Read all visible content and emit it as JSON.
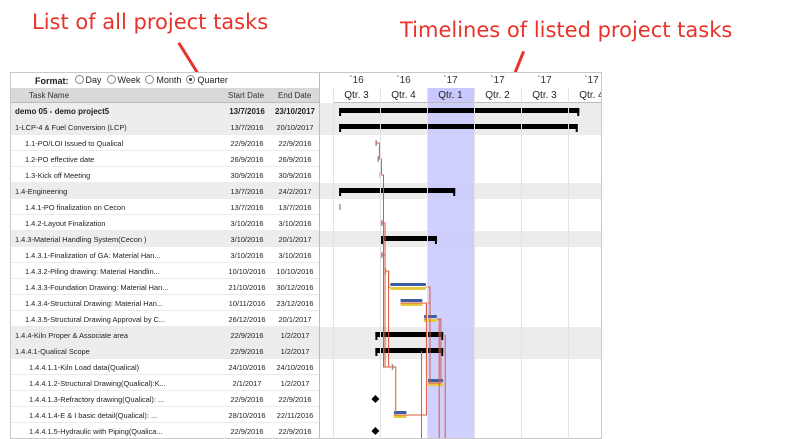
{
  "annotations": {
    "left": "List of all project tasks",
    "right": "Timelines of listed project tasks"
  },
  "format": {
    "label": "Format:",
    "options": [
      "Day",
      "Week",
      "Month",
      "Quarter"
    ],
    "selected": "Quarter"
  },
  "columns": {
    "name": "Task Name",
    "start": "Start Date",
    "end": "End Date"
  },
  "years": [
    "`16",
    "`16",
    "`17",
    "`17",
    "`17",
    "`17"
  ],
  "quarters": [
    "Qtr. 3",
    "Qtr. 4",
    "Qtr. 1",
    "Qtr. 2",
    "Qtr. 3",
    "Qtr. 4"
  ],
  "current_quarter_index": 2,
  "colors": {
    "bar_blue": "#3b5f9e",
    "bar_yellow": "#e7c93b",
    "summary": "#000000",
    "link": "#d85a3f",
    "current": "#c9c9ff",
    "annotation": "#e8332a"
  },
  "tasks": [
    {
      "name": "demo 05 - demo project5",
      "start": "13/7/2016",
      "end": "23/10/2017",
      "level": 0,
      "type": "project"
    },
    {
      "name": "1-LCP-4 & Fuel Conversion (LCP)",
      "start": "13/7/2016",
      "end": "20/10/2017",
      "level": 0,
      "type": "summary"
    },
    {
      "name": "1.1-PO/LOI Issued to Qualical",
      "start": "22/9/2016",
      "end": "22/9/2016",
      "level": 1,
      "type": "task"
    },
    {
      "name": "1.2-PO effective date",
      "start": "26/9/2016",
      "end": "26/9/2016",
      "level": 1,
      "type": "task"
    },
    {
      "name": "1.3-Kick off Meeting",
      "start": "30/9/2016",
      "end": "30/9/2016",
      "level": 1,
      "type": "task"
    },
    {
      "name": "1.4-Engineering",
      "start": "13/7/2016",
      "end": "24/2/2017",
      "level": 0,
      "type": "summary"
    },
    {
      "name": "1.4.1-PO finalization on Cecon",
      "start": "13/7/2016",
      "end": "13/7/2016",
      "level": 1,
      "type": "task"
    },
    {
      "name": "1.4.2-Layout Finalization",
      "start": "3/10/2016",
      "end": "3/10/2016",
      "level": 1,
      "type": "task"
    },
    {
      "name": "1.4.3-Material Handling System(Cecon )",
      "start": "3/10/2016",
      "end": "20/1/2017",
      "level": 0,
      "type": "summary"
    },
    {
      "name": "1.4.3.1-Finalization of GA: Material Han...",
      "start": "3/10/2016",
      "end": "3/10/2016",
      "level": 1,
      "type": "task"
    },
    {
      "name": "1.4.3.2-Piling drawing: Material Handlin...",
      "start": "10/10/2016",
      "end": "10/10/2016",
      "level": 1,
      "type": "task"
    },
    {
      "name": "1.4.3.3-Foundation Drawing: Material Han...",
      "start": "21/10/2016",
      "end": "30/12/2016",
      "level": 1,
      "type": "task"
    },
    {
      "name": "1.4.3.4-Structural Drawing: Material Han...",
      "start": "10/11/2016",
      "end": "23/12/2016",
      "level": 1,
      "type": "task"
    },
    {
      "name": "1.4.3.5-Structural Drawing Approval by C...",
      "start": "26/12/2016",
      "end": "20/1/2017",
      "level": 1,
      "type": "task"
    },
    {
      "name": "1.4.4-Kiln Proper & Associate area",
      "start": "22/9/2016",
      "end": "1/2/2017",
      "level": 0,
      "type": "summary"
    },
    {
      "name": "1.4.4.1-Qualical Scope",
      "start": "22/9/2016",
      "end": "1/2/2017",
      "level": 0,
      "type": "summary"
    },
    {
      "name": "1.4.4.1.1-Kiln Load data(Qualical)",
      "start": "24/10/2016",
      "end": "24/10/2016",
      "level": 2,
      "type": "task"
    },
    {
      "name": "1.4.4.1.2-Structural Drawing(Qualical):K...",
      "start": "2/1/2017",
      "end": "1/2/2017",
      "level": 2,
      "type": "task"
    },
    {
      "name": "1.4.4.1.3-Refractory drawing(Qualical): ...",
      "start": "22/9/2016",
      "end": "22/9/2016",
      "level": 2,
      "type": "task"
    },
    {
      "name": "1.4.4.1.4-E & I basic detail(Qualical): ...",
      "start": "28/10/2016",
      "end": "22/11/2016",
      "level": 2,
      "type": "task"
    },
    {
      "name": "1.4.4.1.5-Hydraulic with Piping(Qualica...",
      "start": "22/9/2016",
      "end": "22/9/2016",
      "level": 2,
      "type": "task"
    }
  ]
}
